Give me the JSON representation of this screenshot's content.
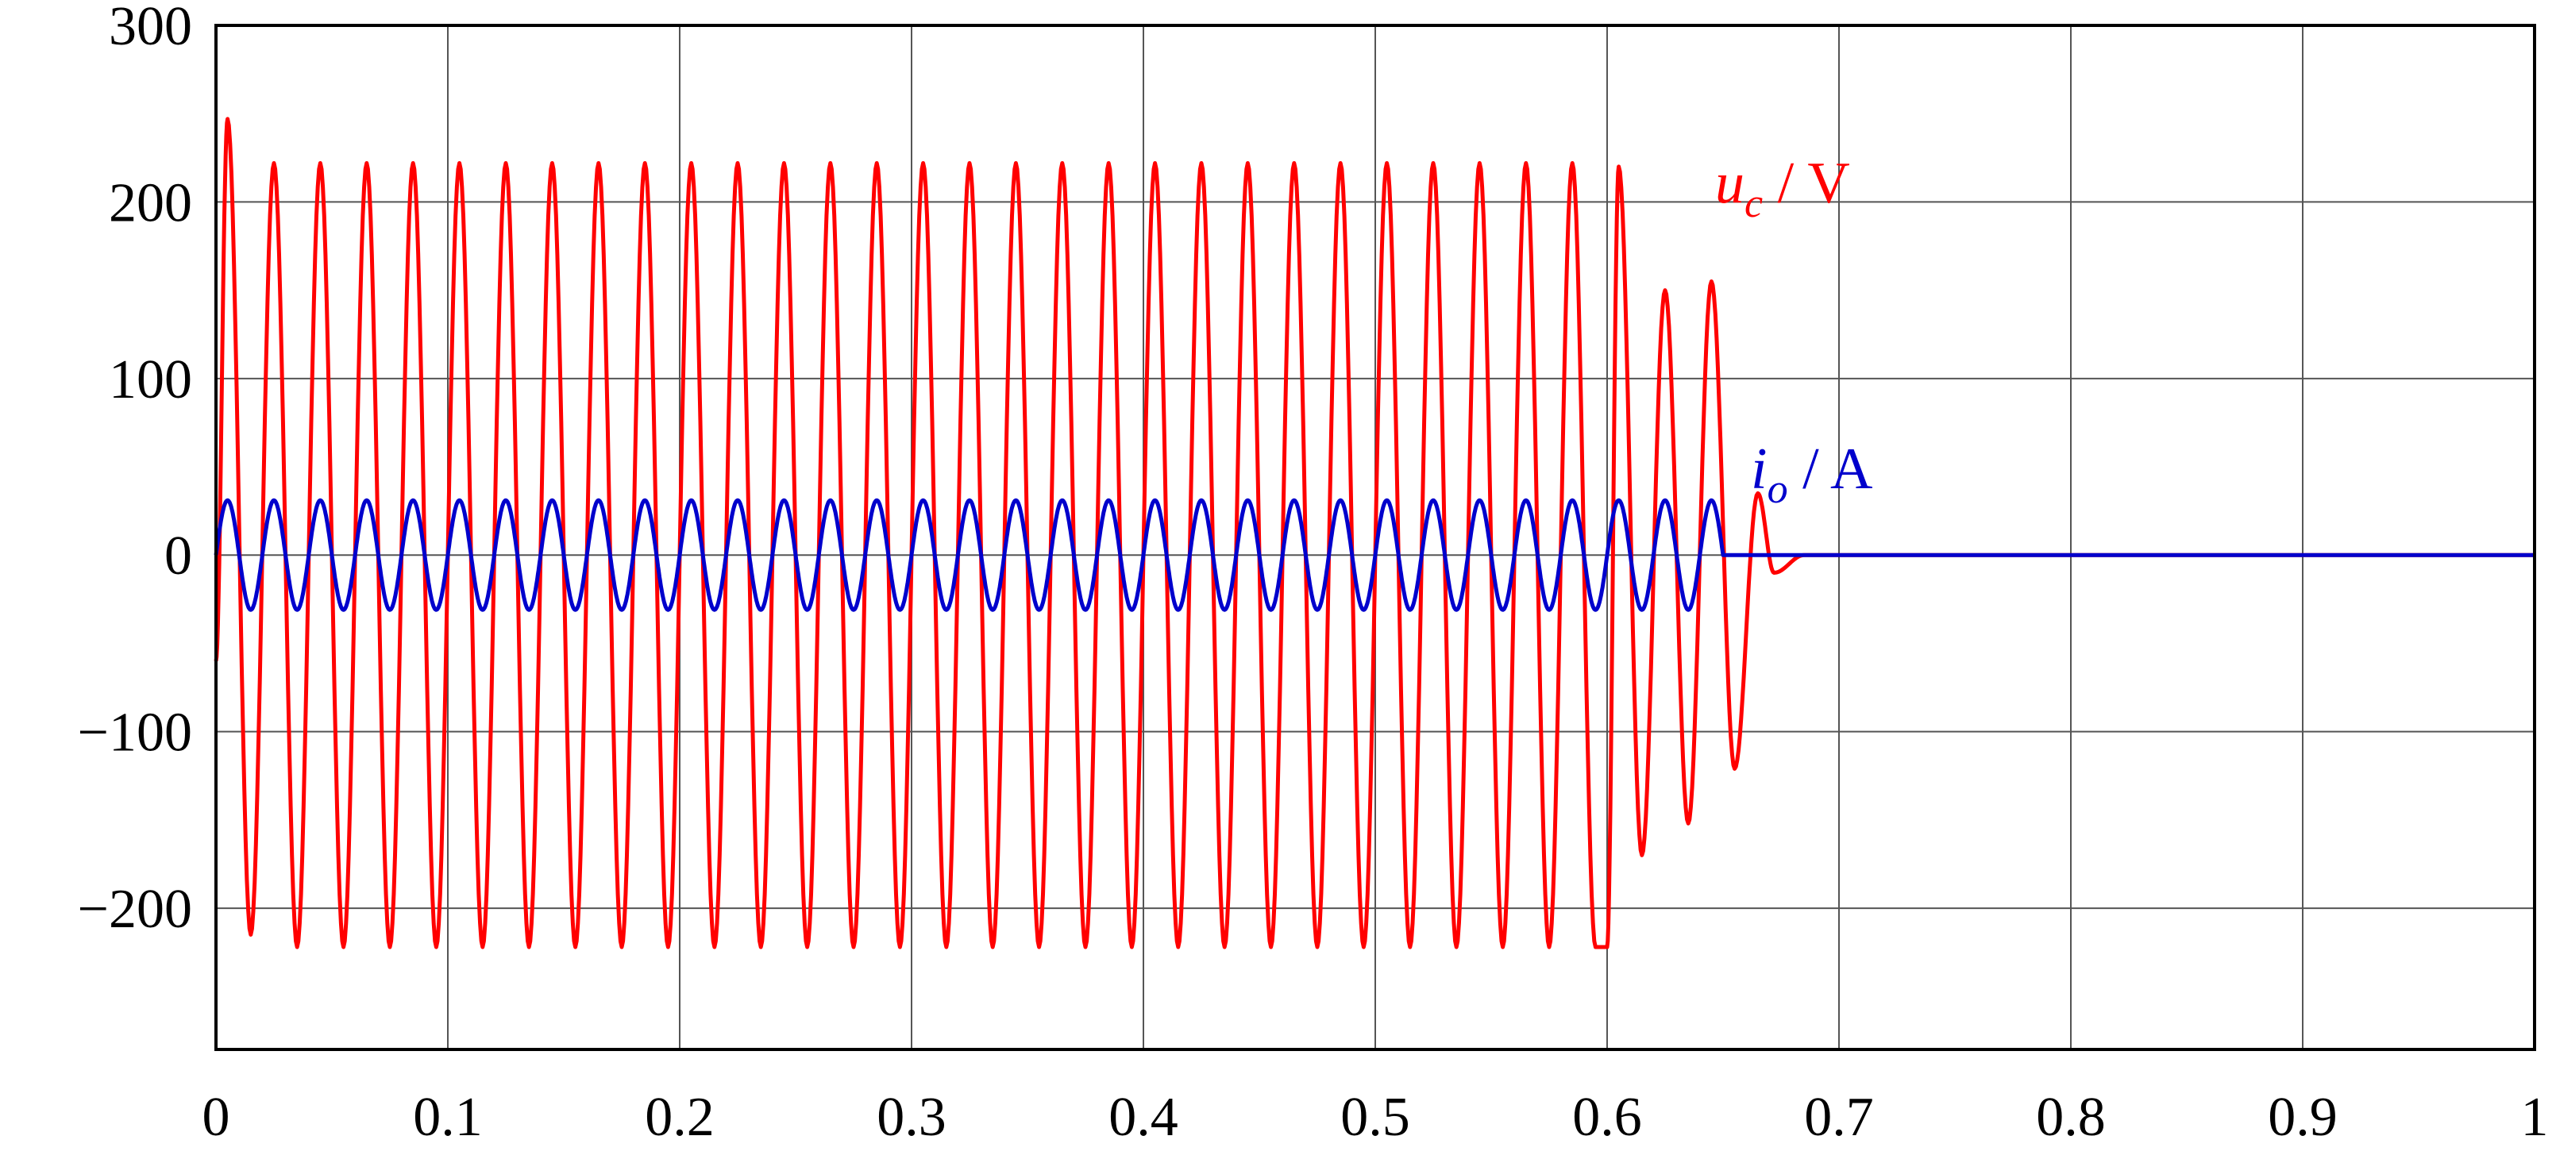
{
  "chart_data": {
    "type": "line",
    "title": "",
    "xlabel": "",
    "ylabel": "",
    "xlim": [
      0,
      1
    ],
    "ylim": [
      -280,
      300
    ],
    "xticks": [
      0,
      0.1,
      0.2,
      0.3,
      0.4,
      0.5,
      0.6,
      0.7,
      0.8,
      0.9,
      1
    ],
    "xtick_labels": [
      "0",
      "0.1",
      "0.2",
      "0.3",
      "0.4",
      "0.5",
      "0.6",
      "0.7",
      "0.8",
      "0.9",
      "1"
    ],
    "yticks": [
      300,
      200,
      100,
      0,
      -100,
      -200
    ],
    "ytick_labels": [
      "300",
      "200",
      "100",
      "0",
      "−100",
      "−200"
    ],
    "grid": true,
    "series": [
      {
        "name_main": "u",
        "name_sub": "c",
        "name_unit": " / V",
        "color": "#ff0000",
        "frequency_hz": 50,
        "amplitude": 222,
        "initial_peak": 247,
        "initial_trough": -215,
        "drop_start": 0.6,
        "late_peaks": [
          [
            0.605,
            220
          ],
          [
            0.625,
            150
          ],
          [
            0.645,
            155
          ]
        ],
        "late_troughs": [
          [
            0.6,
            -222
          ],
          [
            0.615,
            -170
          ],
          [
            0.635,
            -152
          ],
          [
            0.655,
            -121
          ]
        ],
        "settle_peak": [
          0.665,
          35
        ],
        "settle_trough": [
          0.672,
          -10
        ],
        "zero_after": 0.685
      },
      {
        "name_main": "i",
        "name_sub": "o",
        "name_unit": " / A",
        "color": "#0000cc",
        "frequency_hz": 50,
        "amplitude": 31,
        "stop_at": 0.65,
        "zero_after": 0.65
      }
    ]
  }
}
